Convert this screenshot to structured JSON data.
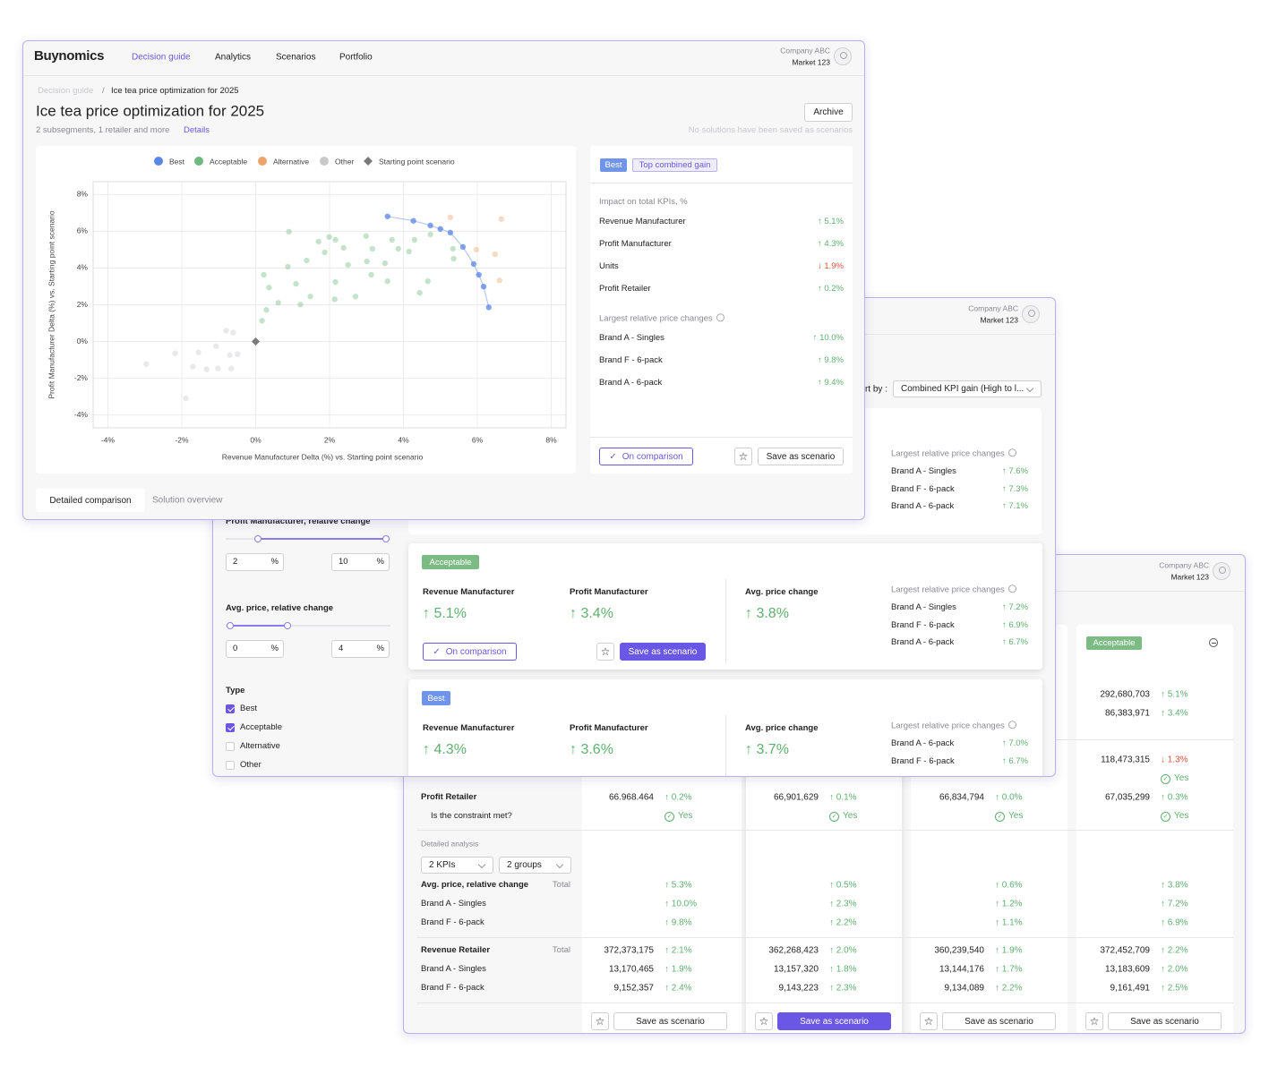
{
  "front": {
    "nav": {
      "logo": "Buynomics",
      "items": [
        "Decision guide",
        "Analytics",
        "Scenarios",
        "Portfolio"
      ],
      "company": "Company ABC",
      "market": "Market 123"
    },
    "breadcrumb": {
      "items": [
        "Decision guide",
        "Ice tea price optimization for 2025"
      ],
      "separator": "/"
    },
    "title": "Ice tea price optimization for 2025",
    "subtitle": "2 subsegments, 1 retailer and more",
    "details": "Details",
    "archive": "Archive",
    "note": "No solutions have been saved as scenarios",
    "tabs": [
      "Detailed comparison",
      "Solution overview"
    ],
    "solution": {
      "badges": [
        "Best",
        "Top combined gain"
      ],
      "kpi_heading": "Impact on total KPIs, %",
      "kpis": [
        {
          "name": "Revenue Manufacturer",
          "change": "5.1%",
          "direction": "up"
        },
        {
          "name": "Profit Manufacturer",
          "change": "4.3%",
          "direction": "up"
        },
        {
          "name": "Units",
          "change": "1.9%",
          "direction": "down"
        },
        {
          "name": "Profit Retailer",
          "change": "0.2%",
          "direction": "up"
        }
      ],
      "price_heading": "Largest relative price changes",
      "prices": [
        {
          "name": "Brand A - Singles",
          "change": "10.0%",
          "direction": "up"
        },
        {
          "name": "Brand F - 6-pack",
          "change": "9.8%",
          "direction": "up"
        },
        {
          "name": "Brand A - 6-pack",
          "change": "9.4%",
          "direction": "up"
        }
      ],
      "on_comparison": "On comparison",
      "save": "Save as scenario"
    }
  },
  "chart_data": {
    "type": "scatter",
    "x_label": "Revenue Manufacturer Delta (%) vs. Starting point scenario",
    "y_label": "Profit Manufacturer Delta (%) vs. Starting point scenario",
    "xlim": [
      -4.4,
      8.4
    ],
    "ylim": [
      -4.7,
      8.7
    ],
    "xticks": [
      {
        "value": -4,
        "label": "-4%"
      },
      {
        "value": -2,
        "label": "-2%"
      },
      {
        "value": 0,
        "label": "0%"
      },
      {
        "value": 2,
        "label": "2%"
      },
      {
        "value": 4,
        "label": "4%"
      },
      {
        "value": 6,
        "label": "6%"
      },
      {
        "value": 8,
        "label": "8%"
      }
    ],
    "yticks": [
      {
        "value": -4,
        "label": "-4%"
      },
      {
        "value": -2,
        "label": "-2%"
      },
      {
        "value": 0,
        "label": "0%"
      },
      {
        "value": 2,
        "label": "2%"
      },
      {
        "value": 4,
        "label": "4%"
      },
      {
        "value": 6,
        "label": "6%"
      },
      {
        "value": 8,
        "label": "8%"
      }
    ],
    "grid": true,
    "series": [
      {
        "name": "Best",
        "color": "#5b86e5",
        "marker": "circle",
        "line": true,
        "x": [
          3.57,
          4.27,
          4.73,
          5.0,
          5.27,
          5.61,
          5.9,
          6.04,
          6.17,
          6.31
        ],
        "values": [
          6.81,
          6.57,
          6.32,
          6.13,
          5.93,
          5.15,
          4.22,
          3.63,
          2.99,
          1.86
        ]
      },
      {
        "name": "Acceptable",
        "color": "#6dba7c",
        "marker": "circle",
        "line": false,
        "x": [
          0.9,
          1.7,
          1.99,
          2.16,
          2.99,
          3.69,
          4.3,
          2.38,
          1.87,
          3.16,
          3.86,
          1.38,
          2.5,
          3.01,
          3.5,
          4.15,
          4.73,
          5.36,
          5.34,
          0.87,
          0.22,
          0.36,
          1.09,
          2.16,
          3.13,
          3.57,
          4.66,
          4.44,
          1.48,
          1.21,
          0.61,
          0.29,
          0.17,
          2.14,
          2.7
        ],
        "values": [
          5.98,
          5.44,
          5.69,
          5.54,
          5.74,
          5.54,
          5.54,
          5.1,
          4.85,
          5.05,
          5.05,
          4.41,
          4.17,
          4.36,
          4.26,
          4.9,
          5.83,
          4.51,
          5.05,
          4.07,
          3.63,
          2.94,
          3.14,
          3.24,
          3.63,
          3.28,
          3.28,
          2.65,
          2.45,
          2.01,
          2.11,
          1.72,
          1.13,
          2.3,
          2.45
        ]
      },
      {
        "name": "Alternative",
        "color": "#eda46a",
        "marker": "circle",
        "line": false,
        "x": [
          5.27,
          6.65,
          5.97,
          6.48,
          6.6
        ],
        "values": [
          6.76,
          6.67,
          5.0,
          4.75,
          3.33
        ]
      },
      {
        "name": "Other",
        "color": "#c9c9cc",
        "marker": "circle",
        "line": false,
        "x": [
          -2.96,
          -2.18,
          -1.89,
          -1.7,
          -1.55,
          -1.33,
          -1.07,
          -1.02,
          -0.8,
          -0.7,
          -0.61,
          -0.49,
          -0.66
        ],
        "values": [
          -1.23,
          -0.64,
          -3.09,
          -1.37,
          -0.59,
          -1.52,
          -0.25,
          -1.47,
          0.59,
          -0.74,
          0.49,
          -0.69,
          -1.47
        ]
      },
      {
        "name": "Starting point scenario",
        "color": "#7a7a7e",
        "marker": "diamond",
        "line": false,
        "x": [
          0
        ],
        "values": [
          0
        ]
      }
    ]
  },
  "middle": {
    "company": "Company ABC",
    "market": "Market 123",
    "sort_label": "Sort by :",
    "sort_value": "Combined KPI gain (High to l...",
    "price_heading": "Largest relative price changes",
    "filters": [
      {
        "label": "Profit Manufacturer, relative change",
        "min": 2,
        "max": 10,
        "unit": "%"
      },
      {
        "label": "Avg. price, relative change",
        "min": 0,
        "max": 4,
        "unit": "%"
      }
    ],
    "type_label": "Type",
    "types": [
      {
        "name": "Best",
        "checked": true
      },
      {
        "name": "Acceptable",
        "checked": true
      },
      {
        "name": "Alternative",
        "checked": false
      },
      {
        "name": "Other",
        "checked": false
      }
    ],
    "cards": [
      {
        "prices": [
          {
            "name": "Brand A - Singles",
            "change": "7.6%",
            "direction": "up"
          },
          {
            "name": "Brand F - 6-pack",
            "change": "7.3%",
            "direction": "up"
          },
          {
            "name": "Brand A - 6-pack",
            "change": "7.1%",
            "direction": "up"
          }
        ]
      },
      {
        "badge": "Acceptable",
        "metrics": [
          {
            "name": "Revenue Manufacturer",
            "change": "5.1%",
            "direction": "up"
          },
          {
            "name": "Profit Manufacturer",
            "change": "3.4%",
            "direction": "up"
          },
          {
            "name": "Avg. price change",
            "change": "3.8%",
            "direction": "up"
          }
        ],
        "prices": [
          {
            "name": "Brand A - Singles",
            "change": "7.2%",
            "direction": "up"
          },
          {
            "name": "Brand F - 6-pack",
            "change": "6.9%",
            "direction": "up"
          },
          {
            "name": "Brand A - 6-pack",
            "change": "6.7%",
            "direction": "up"
          }
        ],
        "on_comparison": "On comparison",
        "save": "Save as scenario"
      },
      {
        "badge": "Best",
        "metrics": [
          {
            "name": "Revenue Manufacturer",
            "change": "4.3%",
            "direction": "up"
          },
          {
            "name": "Profit Manufacturer",
            "change": "3.6%",
            "direction": "up"
          },
          {
            "name": "Avg. price change",
            "change": "3.7%",
            "direction": "up"
          }
        ],
        "prices": [
          {
            "name": "Brand A - 6-pack",
            "change": "7.0%",
            "direction": "up"
          },
          {
            "name": "Brand F - 6-pack",
            "change": "6.7%",
            "direction": "up"
          }
        ]
      }
    ]
  },
  "back": {
    "company": "Company ABC",
    "market": "Market 123",
    "column_badge": "Acceptable",
    "top_rows": [
      {
        "value": "292,680,703",
        "change": "5.1%",
        "direction": "up"
      },
      {
        "value": "86,383,971",
        "change": "3.4%",
        "direction": "up"
      },
      {
        "value": "118,473,315",
        "change": "1.3%",
        "direction": "down"
      }
    ],
    "top_constraint": "Yes",
    "rows": [
      {
        "label": "Profit Retailer",
        "cells": [
          {
            "value": "66.968.464",
            "change": "0.2%",
            "direction": "up"
          },
          {
            "value": "66,901,629",
            "change": "0.1%",
            "direction": "up"
          },
          {
            "value": "66,834,794",
            "change": "0.0%",
            "direction": "up"
          },
          {
            "value": "67,035,299",
            "change": "0.3%",
            "direction": "up"
          }
        ]
      },
      {
        "label": "Is the constraint met?",
        "cells": [
          "Yes",
          "Yes",
          "Yes",
          "Yes"
        ]
      }
    ],
    "detailed_label": "Detailed analysis",
    "selects": [
      "2 KPIs",
      "2 groups"
    ],
    "groups": [
      {
        "label": "Avg. price, relative change",
        "total": "Total",
        "cells": [
          {
            "change": "5.3%",
            "direction": "up"
          },
          {
            "change": "0.5%",
            "direction": "up"
          },
          {
            "change": "0.6%",
            "direction": "up"
          },
          {
            "change": "3.8%",
            "direction": "up"
          }
        ],
        "rows": [
          {
            "label": "Brand A - Singles",
            "cells": [
              {
                "change": "10.0%",
                "direction": "up"
              },
              {
                "change": "2.3%",
                "direction": "up"
              },
              {
                "change": "1.2%",
                "direction": "up"
              },
              {
                "change": "7.2%",
                "direction": "up"
              }
            ]
          },
          {
            "label": "Brand F - 6-pack",
            "cells": [
              {
                "change": "9.8%",
                "direction": "up"
              },
              {
                "change": "2.2%",
                "direction": "up"
              },
              {
                "change": "1.1%",
                "direction": "up"
              },
              {
                "change": "6.9%",
                "direction": "up"
              }
            ]
          }
        ]
      },
      {
        "label": "Revenue Retailer",
        "total": "Total",
        "cells": [
          {
            "value": "372,373,175",
            "change": "2.1%",
            "direction": "up"
          },
          {
            "value": "362,268,423",
            "change": "2.0%",
            "direction": "up"
          },
          {
            "value": "360,239,540",
            "change": "1.9%",
            "direction": "up"
          },
          {
            "value": "372,452,709",
            "change": "2.2%",
            "direction": "up"
          }
        ],
        "rows": [
          {
            "label": "Brand A - Singles",
            "cells": [
              {
                "value": "13,170,465",
                "change": "1.9%",
                "direction": "up"
              },
              {
                "value": "13,157,320",
                "change": "1.8%",
                "direction": "up"
              },
              {
                "value": "13,144,176",
                "change": "1.7%",
                "direction": "up"
              },
              {
                "value": "13,183,609",
                "change": "2.0%",
                "direction": "up"
              }
            ]
          },
          {
            "label": "Brand F - 6-pack",
            "cells": [
              {
                "value": "9,152,357",
                "change": "2.4%",
                "direction": "up"
              },
              {
                "value": "9,143,223",
                "change": "2.3%",
                "direction": "up"
              },
              {
                "value": "9,134,089",
                "change": "2.2%",
                "direction": "up"
              },
              {
                "value": "9,161,491",
                "change": "2.5%",
                "direction": "up"
              }
            ]
          }
        ]
      }
    ],
    "save": "Save as scenario",
    "selected_column": 1
  }
}
